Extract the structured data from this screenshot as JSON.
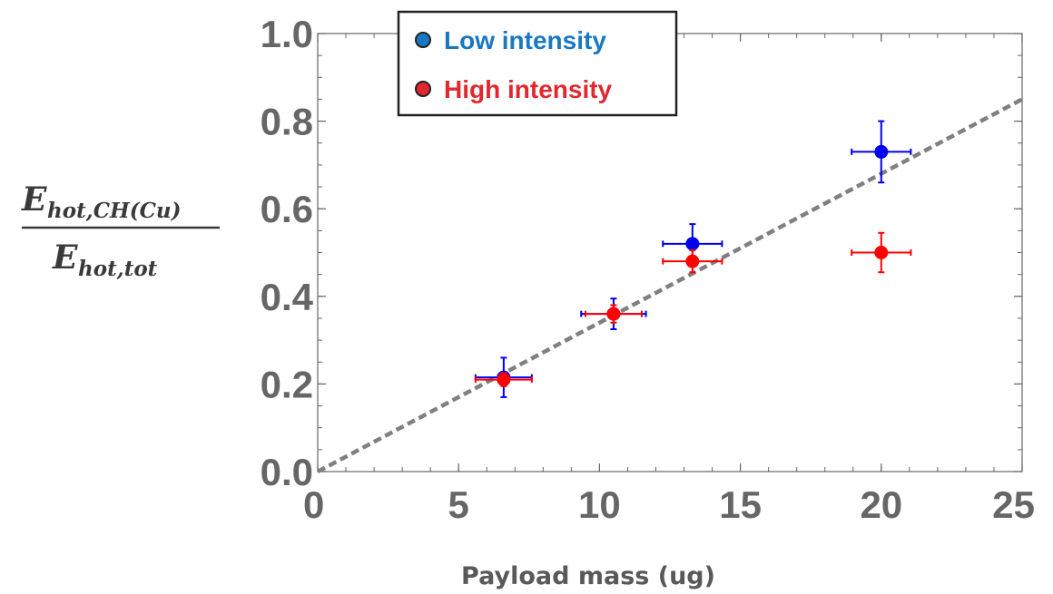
{
  "chart_data": {
    "type": "scatter",
    "xlabel": "Payload mass (ug)",
    "ylabel": {
      "numerator_main": "E",
      "numerator_sub": "hot,CH(Cu)",
      "denominator_main": "E",
      "denominator_sub": "hot,tot"
    },
    "xlim": [
      0,
      25
    ],
    "ylim": [
      0,
      1.0
    ],
    "x_ticks": [
      0,
      5,
      10,
      15,
      20,
      25
    ],
    "x_tick_labels": [
      "0",
      "5",
      "10",
      "15",
      "20",
      "25"
    ],
    "y_ticks": [
      0,
      0.2,
      0.4,
      0.6,
      0.8,
      1.0
    ],
    "y_tick_labels": [
      "0.0",
      "0.2",
      "0.4",
      "0.6",
      "0.8",
      "1.0"
    ],
    "grid": false,
    "legend_position": "top-left",
    "series": [
      {
        "name": "Low intensity",
        "color": "#0000ee",
        "legend_color": "#1a78c2",
        "points": [
          {
            "x": 6.6,
            "y": 0.215,
            "xerr": 1.0,
            "yerr": 0.045
          },
          {
            "x": 10.5,
            "y": 0.36,
            "xerr": 1.15,
            "yerr": 0.035
          },
          {
            "x": 13.3,
            "y": 0.52,
            "xerr": 1.05,
            "yerr": 0.045
          },
          {
            "x": 20.0,
            "y": 0.73,
            "xerr": 1.05,
            "yerr": 0.07
          }
        ]
      },
      {
        "name": "High intensity",
        "color": "#ff0000",
        "legend_color": "#e0282e",
        "points": [
          {
            "x": 6.6,
            "y": 0.21,
            "xerr": 1.0,
            "yerr": 0.015
          },
          {
            "x": 10.5,
            "y": 0.36,
            "xerr": 1.0,
            "yerr": 0.02
          },
          {
            "x": 13.3,
            "y": 0.48,
            "xerr": 1.05,
            "yerr": 0.025
          },
          {
            "x": 20.0,
            "y": 0.5,
            "xerr": 1.05,
            "yerr": 0.045
          }
        ]
      }
    ],
    "fit_line": {
      "x": [
        0,
        25
      ],
      "y": [
        0,
        0.85
      ],
      "style": "dashed",
      "color": "#808080"
    }
  }
}
